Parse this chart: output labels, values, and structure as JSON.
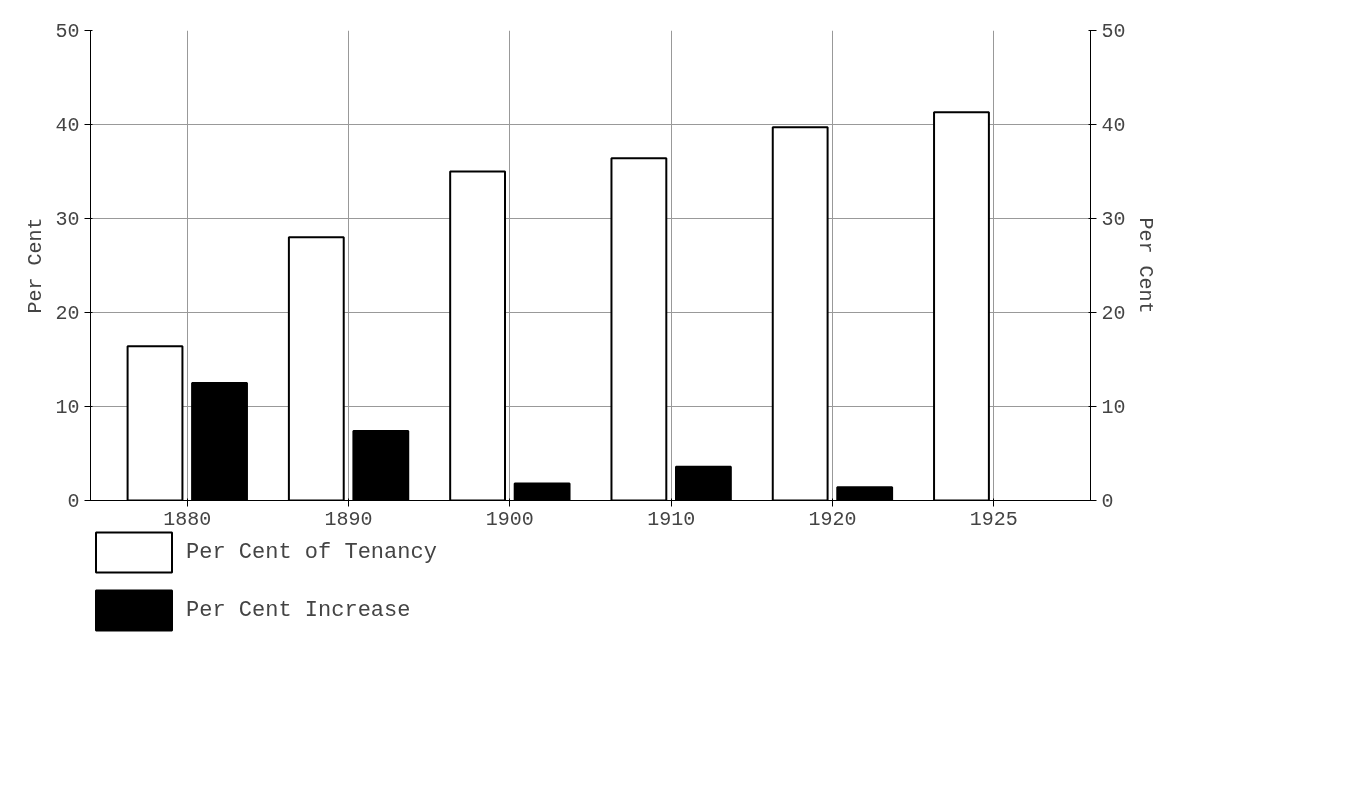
{
  "chart_data": {
    "type": "bar",
    "categories": [
      "1880",
      "1890",
      "1900",
      "1910",
      "1920",
      "1925"
    ],
    "series": [
      {
        "name": "Per Cent of Tenancy",
        "color": "#ffffff",
        "values": [
          16.4,
          28,
          35,
          36.4,
          39.7,
          41.3
        ]
      },
      {
        "name": "Per Cent Increase",
        "color": "#000000",
        "values": [
          12.5,
          7.4,
          1.8,
          3.6,
          1.4,
          null
        ]
      }
    ],
    "ylabel": "Per Cent",
    "y2label": "Per Cent",
    "ylim": [
      0,
      50
    ],
    "yticks": [
      0,
      10,
      20,
      30,
      40,
      50
    ],
    "y2lim": [
      0,
      50
    ],
    "y2ticks": [
      0,
      10,
      20,
      30,
      40,
      50
    ],
    "grid": true,
    "legend": "bottom left"
  }
}
